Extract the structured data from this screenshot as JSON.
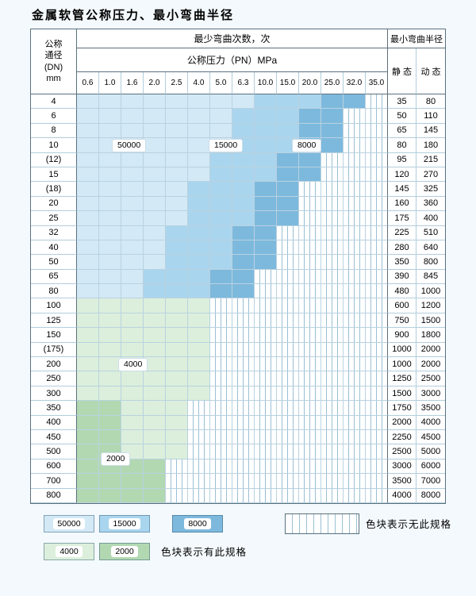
{
  "page_title": "金属软管公称压力、最小弯曲半径",
  "chart_data": {
    "type": "heatmap",
    "title": "金属软管公称压力、最小弯曲半径",
    "top_header": "最少弯曲次数，次",
    "pressure_header": "公称压力（PN）MPa",
    "radius_header": "最小弯曲半径",
    "static_label": "静 态",
    "dynamic_label": "动 态",
    "dn_header_lines": [
      "公称",
      "通径",
      "(DN)",
      "mm"
    ],
    "pressures": [
      "0.6",
      "1.0",
      "1.6",
      "2.0",
      "2.5",
      "4.0",
      "5.0",
      "6.3",
      "10.0",
      "15.0",
      "20.0",
      "25.0",
      "32.0",
      "35.0"
    ],
    "grade_colors": {
      "50000": "#d3e9f6",
      "15000": "#aad5ee",
      "8000": "#7db9dd",
      "4000": "#dcefdc",
      "2000": "#b2d8b2"
    },
    "rows": [
      {
        "dn": "4",
        "static": "35",
        "dynamic": "80",
        "grades": [
          "50000",
          "50000",
          "50000",
          "50000",
          "50000",
          "50000",
          "50000",
          "50000",
          "15000",
          "15000",
          "15000",
          "8000",
          "8000",
          "none"
        ]
      },
      {
        "dn": "6",
        "static": "50",
        "dynamic": "110",
        "grades": [
          "50000",
          "50000",
          "50000",
          "50000",
          "50000",
          "50000",
          "50000",
          "15000",
          "15000",
          "15000",
          "8000",
          "8000",
          "none",
          "none"
        ]
      },
      {
        "dn": "8",
        "static": "65",
        "dynamic": "145",
        "grades": [
          "50000",
          "50000",
          "50000",
          "50000",
          "50000",
          "50000",
          "50000",
          "15000",
          "15000",
          "15000",
          "8000",
          "8000",
          "none",
          "none"
        ]
      },
      {
        "dn": "10",
        "static": "80",
        "dynamic": "180",
        "grades": [
          "50000",
          "50000",
          "50000",
          "50000",
          "50000",
          "50000",
          "50000",
          "15000",
          "15000",
          "15000",
          "8000",
          "8000",
          "none",
          "none"
        ]
      },
      {
        "dn": "(12)",
        "static": "95",
        "dynamic": "215",
        "grades": [
          "50000",
          "50000",
          "50000",
          "50000",
          "50000",
          "50000",
          "15000",
          "15000",
          "15000",
          "8000",
          "8000",
          "none",
          "none",
          "none"
        ]
      },
      {
        "dn": "15",
        "static": "120",
        "dynamic": "270",
        "grades": [
          "50000",
          "50000",
          "50000",
          "50000",
          "50000",
          "50000",
          "15000",
          "15000",
          "15000",
          "8000",
          "8000",
          "none",
          "none",
          "none"
        ]
      },
      {
        "dn": "(18)",
        "static": "145",
        "dynamic": "325",
        "grades": [
          "50000",
          "50000",
          "50000",
          "50000",
          "50000",
          "15000",
          "15000",
          "15000",
          "8000",
          "8000",
          "none",
          "none",
          "none",
          "none"
        ]
      },
      {
        "dn": "20",
        "static": "160",
        "dynamic": "360",
        "grades": [
          "50000",
          "50000",
          "50000",
          "50000",
          "50000",
          "15000",
          "15000",
          "15000",
          "8000",
          "8000",
          "none",
          "none",
          "none",
          "none"
        ]
      },
      {
        "dn": "25",
        "static": "175",
        "dynamic": "400",
        "grades": [
          "50000",
          "50000",
          "50000",
          "50000",
          "50000",
          "15000",
          "15000",
          "15000",
          "8000",
          "8000",
          "none",
          "none",
          "none",
          "none"
        ]
      },
      {
        "dn": "32",
        "static": "225",
        "dynamic": "510",
        "grades": [
          "50000",
          "50000",
          "50000",
          "50000",
          "15000",
          "15000",
          "15000",
          "8000",
          "8000",
          "none",
          "none",
          "none",
          "none",
          "none"
        ]
      },
      {
        "dn": "40",
        "static": "280",
        "dynamic": "640",
        "grades": [
          "50000",
          "50000",
          "50000",
          "50000",
          "15000",
          "15000",
          "15000",
          "8000",
          "8000",
          "none",
          "none",
          "none",
          "none",
          "none"
        ]
      },
      {
        "dn": "50",
        "static": "350",
        "dynamic": "800",
        "grades": [
          "50000",
          "50000",
          "50000",
          "50000",
          "15000",
          "15000",
          "15000",
          "8000",
          "8000",
          "none",
          "none",
          "none",
          "none",
          "none"
        ]
      },
      {
        "dn": "65",
        "static": "390",
        "dynamic": "845",
        "grades": [
          "50000",
          "50000",
          "50000",
          "15000",
          "15000",
          "15000",
          "8000",
          "8000",
          "none",
          "none",
          "none",
          "none",
          "none",
          "none"
        ]
      },
      {
        "dn": "80",
        "static": "480",
        "dynamic": "1000",
        "grades": [
          "50000",
          "50000",
          "50000",
          "15000",
          "15000",
          "15000",
          "8000",
          "8000",
          "none",
          "none",
          "none",
          "none",
          "none",
          "none"
        ]
      },
      {
        "dn": "100",
        "static": "600",
        "dynamic": "1200",
        "grades": [
          "4000",
          "4000",
          "4000",
          "4000",
          "4000",
          "4000",
          "none",
          "none",
          "none",
          "none",
          "none",
          "none",
          "none",
          "none"
        ]
      },
      {
        "dn": "125",
        "static": "750",
        "dynamic": "1500",
        "grades": [
          "4000",
          "4000",
          "4000",
          "4000",
          "4000",
          "4000",
          "none",
          "none",
          "none",
          "none",
          "none",
          "none",
          "none",
          "none"
        ]
      },
      {
        "dn": "150",
        "static": "900",
        "dynamic": "1800",
        "grades": [
          "4000",
          "4000",
          "4000",
          "4000",
          "4000",
          "4000",
          "none",
          "none",
          "none",
          "none",
          "none",
          "none",
          "none",
          "none"
        ]
      },
      {
        "dn": "(175)",
        "static": "1000",
        "dynamic": "2000",
        "grades": [
          "4000",
          "4000",
          "4000",
          "4000",
          "4000",
          "4000",
          "none",
          "none",
          "none",
          "none",
          "none",
          "none",
          "none",
          "none"
        ]
      },
      {
        "dn": "200",
        "static": "1000",
        "dynamic": "2000",
        "grades": [
          "4000",
          "4000",
          "4000",
          "4000",
          "4000",
          "4000",
          "none",
          "none",
          "none",
          "none",
          "none",
          "none",
          "none",
          "none"
        ]
      },
      {
        "dn": "250",
        "static": "1250",
        "dynamic": "2500",
        "grades": [
          "4000",
          "4000",
          "4000",
          "4000",
          "4000",
          "4000",
          "none",
          "none",
          "none",
          "none",
          "none",
          "none",
          "none",
          "none"
        ]
      },
      {
        "dn": "300",
        "static": "1500",
        "dynamic": "3000",
        "grades": [
          "4000",
          "4000",
          "4000",
          "4000",
          "4000",
          "4000",
          "none",
          "none",
          "none",
          "none",
          "none",
          "none",
          "none",
          "none"
        ]
      },
      {
        "dn": "350",
        "static": "1750",
        "dynamic": "3500",
        "grades": [
          "2000",
          "2000",
          "4000",
          "4000",
          "4000",
          "none",
          "none",
          "none",
          "none",
          "none",
          "none",
          "none",
          "none",
          "none"
        ]
      },
      {
        "dn": "400",
        "static": "2000",
        "dynamic": "4000",
        "grades": [
          "2000",
          "2000",
          "4000",
          "4000",
          "4000",
          "none",
          "none",
          "none",
          "none",
          "none",
          "none",
          "none",
          "none",
          "none"
        ]
      },
      {
        "dn": "450",
        "static": "2250",
        "dynamic": "4500",
        "grades": [
          "2000",
          "2000",
          "4000",
          "4000",
          "4000",
          "none",
          "none",
          "none",
          "none",
          "none",
          "none",
          "none",
          "none",
          "none"
        ]
      },
      {
        "dn": "500",
        "static": "2500",
        "dynamic": "5000",
        "grades": [
          "2000",
          "2000",
          "4000",
          "4000",
          "4000",
          "none",
          "none",
          "none",
          "none",
          "none",
          "none",
          "none",
          "none",
          "none"
        ]
      },
      {
        "dn": "600",
        "static": "3000",
        "dynamic": "6000",
        "grades": [
          "2000",
          "2000",
          "2000",
          "2000",
          "none",
          "none",
          "none",
          "none",
          "none",
          "none",
          "none",
          "none",
          "none",
          "none"
        ]
      },
      {
        "dn": "700",
        "static": "3500",
        "dynamic": "7000",
        "grades": [
          "2000",
          "2000",
          "2000",
          "2000",
          "none",
          "none",
          "none",
          "none",
          "none",
          "none",
          "none",
          "none",
          "none",
          "none"
        ]
      },
      {
        "dn": "800",
        "static": "4000",
        "dynamic": "8000",
        "grades": [
          "2000",
          "2000",
          "2000",
          "2000",
          "none",
          "none",
          "none",
          "none",
          "none",
          "none",
          "none",
          "none",
          "none",
          "none"
        ]
      }
    ],
    "overlay_labels": {
      "v50000": "50000",
      "v15000": "15000",
      "v8000": "8000",
      "v4000": "4000",
      "v2000": "2000"
    },
    "legend": {
      "blue_items": [
        {
          "grade": "50000",
          "label": "50000"
        },
        {
          "grade": "15000",
          "label": "15000"
        },
        {
          "grade": "8000",
          "label": "8000"
        }
      ],
      "green_items": [
        {
          "grade": "4000",
          "label": "4000"
        },
        {
          "grade": "2000",
          "label": "2000"
        }
      ],
      "no_spec_text": "色块表示无此规格",
      "has_spec_text": "色块表示有此规格"
    }
  }
}
